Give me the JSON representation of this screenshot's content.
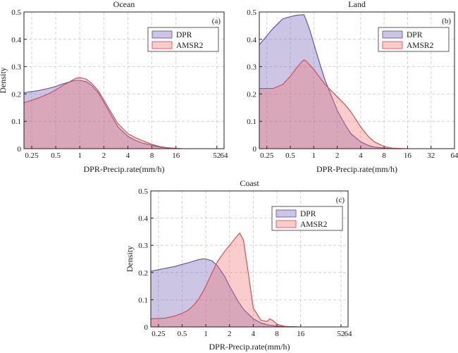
{
  "colors": {
    "dpr": "#5b4aa8",
    "amsr2": "#e0413f",
    "dpr_fill": "rgba(120,105,185,0.38)",
    "amsr2_fill": "rgba(240,110,110,0.35)",
    "grid": "#c8c8c8"
  },
  "chart_data": [
    {
      "type": "area",
      "title": "Ocean",
      "panel_label": "(a)",
      "xlabel": "DPR-Precip.rate(mm/h)",
      "ylabel": "Density",
      "xscale": "log2",
      "xlim": [
        0.2,
        64
      ],
      "ylim": [
        0,
        0.5
      ],
      "xticks": [
        0.25,
        0.5,
        1,
        2,
        4,
        8,
        16,
        52,
        64
      ],
      "xticklabels": [
        "0.25",
        "0.5",
        "1",
        "2",
        "4",
        "8",
        "16",
        "52",
        "64"
      ],
      "yticks": [
        0,
        0.1,
        0.2,
        0.3,
        0.4,
        0.5
      ],
      "yticklabels": [
        "0",
        "0.1",
        "0.2",
        "0.3",
        "0.4",
        "0.5"
      ],
      "grid": true,
      "legend": "top-right",
      "series": [
        {
          "name": "DPR",
          "key": "dpr",
          "x": [
            0.2,
            0.3,
            0.4,
            0.5,
            0.6,
            0.7,
            0.8,
            0.9,
            1.0,
            1.2,
            1.4,
            1.7,
            2.0,
            2.5,
            3.0,
            4.0,
            5.0,
            6.0,
            8.0,
            10,
            12,
            16,
            20
          ],
          "y": [
            0.205,
            0.212,
            0.22,
            0.228,
            0.236,
            0.242,
            0.247,
            0.25,
            0.25,
            0.245,
            0.232,
            0.205,
            0.17,
            0.12,
            0.08,
            0.045,
            0.03,
            0.021,
            0.012,
            0.006,
            0.003,
            0.001,
            0.0
          ]
        },
        {
          "name": "AMSR2",
          "key": "amsr2",
          "x": [
            0.2,
            0.3,
            0.4,
            0.5,
            0.6,
            0.7,
            0.8,
            0.9,
            1.0,
            1.2,
            1.4,
            1.7,
            2.0,
            2.5,
            3.0,
            4.0,
            5.0,
            6.0,
            8.0,
            10,
            12,
            16,
            20
          ],
          "y": [
            0.168,
            0.185,
            0.2,
            0.215,
            0.23,
            0.24,
            0.25,
            0.258,
            0.26,
            0.255,
            0.24,
            0.212,
            0.178,
            0.13,
            0.092,
            0.055,
            0.04,
            0.03,
            0.016,
            0.008,
            0.004,
            0.001,
            0.0
          ]
        }
      ]
    },
    {
      "type": "area",
      "title": "Land",
      "panel_label": "(b)",
      "xlabel": "DPR-Precip.rate(mm/h)",
      "ylabel": "",
      "xscale": "log2",
      "xlim": [
        0.2,
        64
      ],
      "ylim": [
        0,
        0.5
      ],
      "xticks": [
        0.25,
        0.5,
        1,
        2,
        4,
        8,
        16,
        32,
        64
      ],
      "xticklabels": [
        "0.25",
        "0.5",
        "1",
        "2",
        "4",
        "8",
        "16",
        "32",
        "64"
      ],
      "yticks": [
        0,
        0.1,
        0.2,
        0.3,
        0.4,
        0.5
      ],
      "yticklabels": [
        "0",
        "0.1",
        "0.2",
        "0.3",
        "0.4",
        "0.5"
      ],
      "grid": true,
      "legend": "top-right",
      "series": [
        {
          "name": "DPR",
          "key": "dpr",
          "x": [
            0.2,
            0.3,
            0.4,
            0.5,
            0.6,
            0.7,
            0.75,
            0.8,
            0.9,
            1.0,
            1.2,
            1.4,
            1.7,
            2.0,
            2.5,
            3.0,
            4.0,
            5.0,
            6.0,
            8.0,
            10,
            16
          ],
          "y": [
            0.38,
            0.44,
            0.475,
            0.483,
            0.488,
            0.49,
            0.49,
            0.47,
            0.43,
            0.385,
            0.31,
            0.25,
            0.19,
            0.14,
            0.09,
            0.055,
            0.025,
            0.012,
            0.006,
            0.002,
            0.0,
            0.0
          ]
        },
        {
          "name": "AMSR2",
          "key": "amsr2",
          "x": [
            0.2,
            0.3,
            0.4,
            0.5,
            0.6,
            0.7,
            0.75,
            0.8,
            0.9,
            1.0,
            1.2,
            1.4,
            1.7,
            2.0,
            2.5,
            3.0,
            4.0,
            5.0,
            6.0,
            8.0,
            10,
            16
          ],
          "y": [
            0.22,
            0.22,
            0.235,
            0.265,
            0.295,
            0.318,
            0.325,
            0.32,
            0.305,
            0.29,
            0.26,
            0.235,
            0.21,
            0.19,
            0.162,
            0.135,
            0.08,
            0.045,
            0.025,
            0.008,
            0.002,
            0.0
          ]
        }
      ]
    },
    {
      "type": "area",
      "title": "Coast",
      "panel_label": "(c)",
      "xlabel": "DPR-Precip.rate(mm/h)",
      "ylabel": "Density",
      "xscale": "log2",
      "xlim": [
        0.2,
        64
      ],
      "ylim": [
        0,
        0.5
      ],
      "xticks": [
        0.25,
        0.5,
        1,
        2,
        4,
        8,
        16,
        52,
        64
      ],
      "xticklabels": [
        "0.25",
        "0.5",
        "1",
        "2",
        "4",
        "8",
        "16",
        "52",
        "64"
      ],
      "yticks": [
        0,
        0.1,
        0.2,
        0.3,
        0.4,
        0.5
      ],
      "yticklabels": [
        "0",
        "0.1",
        "0.2",
        "0.3",
        "0.4",
        "0.5"
      ],
      "grid": true,
      "legend": "top-right",
      "series": [
        {
          "name": "DPR",
          "key": "dpr",
          "x": [
            0.2,
            0.3,
            0.4,
            0.5,
            0.6,
            0.7,
            0.8,
            0.9,
            1.0,
            1.2,
            1.4,
            1.7,
            2.0,
            2.5,
            3.0,
            4.0,
            5.0,
            6.0,
            8.0,
            10,
            16
          ],
          "y": [
            0.205,
            0.215,
            0.222,
            0.23,
            0.236,
            0.242,
            0.247,
            0.25,
            0.25,
            0.243,
            0.225,
            0.19,
            0.15,
            0.1,
            0.065,
            0.03,
            0.015,
            0.008,
            0.003,
            0.001,
            0.0
          ]
        },
        {
          "name": "AMSR2",
          "key": "amsr2",
          "x": [
            0.2,
            0.3,
            0.4,
            0.5,
            0.6,
            0.7,
            0.8,
            0.9,
            1.0,
            1.2,
            1.4,
            1.7,
            2.0,
            2.5,
            2.7,
            3.0,
            3.3,
            3.7,
            4.0,
            5.0,
            6.0,
            6.5,
            7.0,
            8.0,
            10,
            16
          ],
          "y": [
            0.03,
            0.032,
            0.04,
            0.05,
            0.062,
            0.08,
            0.1,
            0.125,
            0.15,
            0.2,
            0.24,
            0.275,
            0.3,
            0.335,
            0.345,
            0.32,
            0.24,
            0.14,
            0.07,
            0.025,
            0.02,
            0.03,
            0.025,
            0.01,
            0.002,
            0.0
          ]
        }
      ]
    }
  ]
}
